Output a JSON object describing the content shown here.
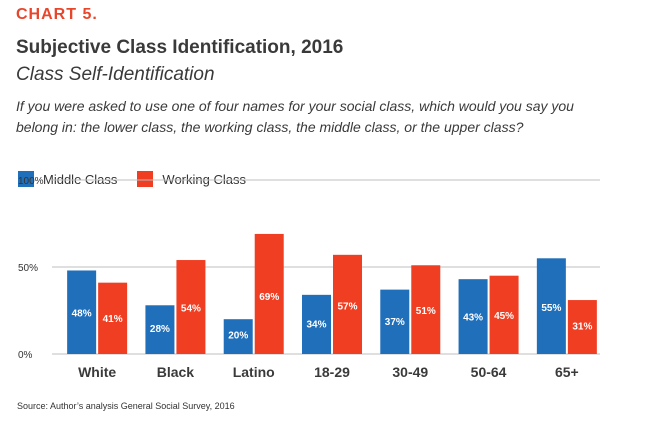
{
  "header": {
    "label": "CHART 5.",
    "title": "Subjective Class Identification, 2016",
    "subtitle": "Class Self-Identification",
    "question": "If you were asked to use one of four names for your social class, which would you say you belong in: the lower class, the working class, the middle class, or the upper class?"
  },
  "colors": {
    "middle_class": "#1f6fba",
    "working_class": "#ef3e22",
    "label": "#e8462b",
    "text": "#3a3a3a",
    "grid": "#bfbfbf"
  },
  "chart_data": {
    "type": "bar",
    "categories": [
      "White",
      "Black",
      "Latino",
      "18-29",
      "30-49",
      "50-64",
      "65+"
    ],
    "series": [
      {
        "name": "Middle Class",
        "values": [
          48,
          28,
          20,
          34,
          37,
          43,
          55
        ],
        "labels": [
          "48%",
          "28%",
          "20%",
          "34%",
          "37%",
          "43%",
          "55%"
        ]
      },
      {
        "name": "Working Class",
        "values": [
          41,
          54,
          69,
          57,
          51,
          45,
          31
        ],
        "labels": [
          "41%",
          "54%",
          "69%",
          "57%",
          "51%",
          "45%",
          "31%"
        ]
      }
    ],
    "y_ticks": [
      {
        "value": 0,
        "label": "0%"
      },
      {
        "value": 50,
        "label": "50%"
      },
      {
        "value": 100,
        "label": "100%"
      }
    ],
    "ylim": [
      0,
      125
    ],
    "grid": true,
    "legend_position": "top-left"
  },
  "source": "Source: Author’s analysis General Social Survey, 2016"
}
